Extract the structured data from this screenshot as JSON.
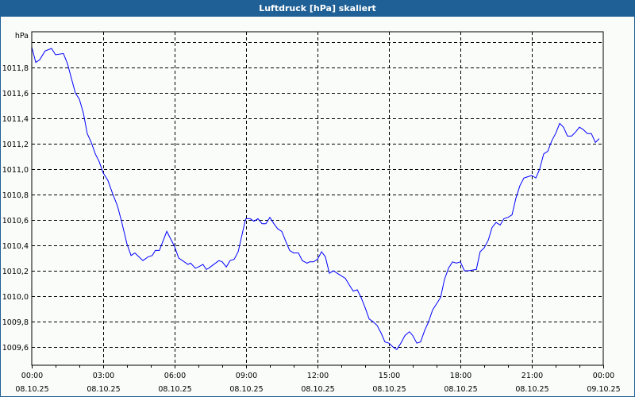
{
  "window": {
    "title": "Luftdruck [hPa] skaliert"
  },
  "colors": {
    "titlebar": "#1f6096",
    "line": "#0000ff",
    "grid": "#000000",
    "background": "#fafcfa"
  },
  "chart_data": {
    "type": "line",
    "title": "Luftdruck [hPa] skaliert",
    "ylabel": "hPa",
    "xlabel": "",
    "ylim": [
      1009.456,
      1012.081
    ],
    "xlim": [
      0,
      24
    ],
    "x_unit": "hours since 08.10.25 00:00",
    "yticks": [
      1009.6,
      1009.8,
      1010.0,
      1010.2,
      1010.4,
      1010.6,
      1010.8,
      1011.0,
      1011.2,
      1011.4,
      1011.6,
      1011.8,
      1012.0
    ],
    "ytick_labels": [
      "1009,6",
      "1009,8",
      "1010,0",
      "1010,2",
      "1010,4",
      "1010,6",
      "1010,8",
      "1011,0",
      "1011,2",
      "1011,4",
      "1011,6",
      "1011,8",
      ""
    ],
    "xticks": [
      0,
      3,
      6,
      9,
      12,
      15,
      18,
      21,
      24
    ],
    "xtick_labels": [
      {
        "time": "00:00",
        "date": "08.10.25"
      },
      {
        "time": "03:00",
        "date": "08.10.25"
      },
      {
        "time": "06:00",
        "date": "08.10.25"
      },
      {
        "time": "09:00",
        "date": "08.10.25"
      },
      {
        "time": "12:00",
        "date": "08.10.25"
      },
      {
        "time": "15:00",
        "date": "08.10.25"
      },
      {
        "time": "18:00",
        "date": "08.10.25"
      },
      {
        "time": "21:00",
        "date": "08.10.25"
      },
      {
        "time": "00:00",
        "date": "09.10.25"
      }
    ],
    "grid": true,
    "series": [
      {
        "name": "Luftdruck",
        "x": [
          0,
          0.17,
          0.33,
          0.56,
          0.83,
          1.0,
          1.33,
          1.5,
          1.83,
          2.0,
          2.17,
          2.33,
          2.5,
          2.67,
          2.83,
          3.0,
          3.2,
          3.39,
          3.6,
          3.77,
          4.0,
          4.17,
          4.33,
          4.67,
          4.89,
          5.06,
          5.19,
          5.36,
          5.67,
          6.0,
          6.17,
          6.33,
          6.56,
          6.67,
          6.87,
          7.0,
          7.19,
          7.33,
          7.43,
          7.86,
          8.0,
          8.17,
          8.33,
          8.5,
          8.67,
          8.97,
          9.0,
          9.17,
          9.33,
          9.5,
          9.67,
          9.83,
          10.0,
          10.17,
          10.33,
          10.5,
          10.67,
          10.83,
          11.0,
          11.2,
          11.36,
          11.56,
          11.67,
          11.83,
          12.0,
          12.17,
          12.33,
          12.5,
          12.67,
          12.83,
          13.0,
          13.17,
          13.33,
          13.5,
          13.67,
          13.83,
          14.0,
          14.17,
          14.33,
          14.5,
          14.67,
          14.83,
          15.0,
          15.17,
          15.33,
          15.5,
          15.67,
          15.86,
          16.0,
          16.17,
          16.33,
          16.5,
          16.67,
          16.83,
          17.0,
          17.17,
          17.33,
          17.5,
          17.67,
          17.83,
          18.0,
          18.17,
          18.33,
          18.67,
          18.83,
          19.0,
          19.17,
          19.33,
          19.5,
          19.67,
          19.83,
          20.0,
          20.17,
          20.33,
          20.5,
          20.67,
          20.83,
          21.0,
          21.17,
          21.33,
          21.5,
          21.67,
          21.83,
          22.0,
          22.17,
          22.33,
          22.5,
          22.67,
          22.83,
          23.0,
          23.17,
          23.33,
          23.5,
          23.67,
          23.83
        ],
        "y": [
          1011.96,
          1011.84,
          1011.86,
          1011.93,
          1011.95,
          1011.9,
          1011.91,
          1011.83,
          1011.6,
          1011.55,
          1011.44,
          1011.28,
          1011.21,
          1011.12,
          1011.06,
          1010.97,
          1010.91,
          1010.81,
          1010.71,
          1010.59,
          1010.41,
          1010.32,
          1010.34,
          1010.28,
          1010.31,
          1010.32,
          1010.36,
          1010.36,
          1010.51,
          1010.39,
          1010.3,
          1010.28,
          1010.25,
          1010.26,
          1010.22,
          1010.23,
          1010.25,
          1010.21,
          1010.22,
          1010.28,
          1010.27,
          1010.23,
          1010.28,
          1010.29,
          1010.35,
          1010.6,
          1010.61,
          1010.61,
          1010.59,
          1010.61,
          1010.57,
          1010.57,
          1010.62,
          1010.57,
          1010.53,
          1010.51,
          1010.43,
          1010.36,
          1010.34,
          1010.34,
          1010.28,
          1010.26,
          1010.27,
          1010.27,
          1010.29,
          1010.35,
          1010.31,
          1010.18,
          1010.2,
          1010.18,
          1010.16,
          1010.14,
          1010.09,
          1010.04,
          1010.05,
          1009.99,
          1009.91,
          1009.82,
          1009.8,
          1009.77,
          1009.71,
          1009.64,
          1009.63,
          1009.6,
          1009.58,
          1009.63,
          1009.69,
          1009.72,
          1009.69,
          1009.63,
          1009.64,
          1009.73,
          1009.8,
          1009.89,
          1009.94,
          1009.99,
          1010.13,
          1010.22,
          1010.27,
          1010.26,
          1010.27,
          1010.2,
          1010.2,
          1010.21,
          1010.35,
          1010.38,
          1010.44,
          1010.54,
          1010.58,
          1010.56,
          1010.61,
          1010.62,
          1010.64,
          1010.77,
          1010.87,
          1010.93,
          1010.94,
          1010.95,
          1010.93,
          1011.0,
          1011.12,
          1011.14,
          1011.22,
          1011.28,
          1011.36,
          1011.33,
          1011.26,
          1011.26,
          1011.29,
          1011.33,
          1011.31,
          1011.28,
          1011.28,
          1011.21,
          1011.24
        ]
      }
    ]
  }
}
